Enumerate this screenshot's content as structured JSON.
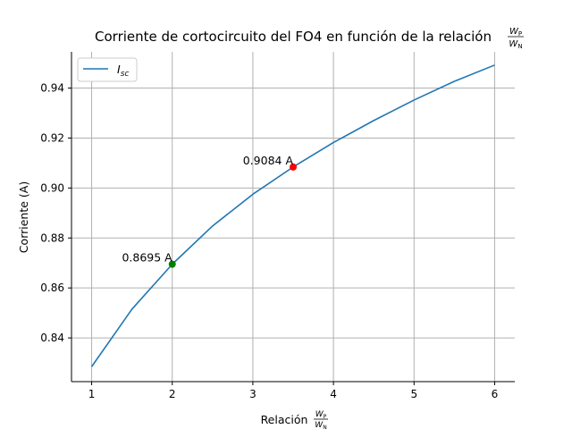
{
  "chart_data": {
    "type": "line",
    "title_text": "Corriente de cortocircuito del FO4 en función de la relación",
    "xlabel_text": "Relación",
    "ratio_num": "W",
    "ratio_num_sub": "P",
    "ratio_den": "W",
    "ratio_den_sub": "N",
    "ylabel": "Corriente (A)",
    "xlim": [
      0.75,
      6.25
    ],
    "ylim": [
      0.8225,
      0.9545
    ],
    "x_ticks": [
      1,
      2,
      3,
      4,
      5,
      6
    ],
    "x_tick_labels": [
      "1",
      "2",
      "3",
      "4",
      "5",
      "6"
    ],
    "y_ticks": [
      0.84,
      0.86,
      0.88,
      0.9,
      0.92,
      0.94
    ],
    "y_tick_labels": [
      "0.84",
      "0.86",
      "0.88",
      "0.90",
      "0.92",
      "0.94"
    ],
    "grid": true,
    "legend_position": "top-left",
    "series": [
      {
        "name": "I",
        "name_sub": "sc",
        "color": "#1f77b4",
        "x": [
          1.0,
          1.5,
          2.0,
          2.5,
          3.0,
          3.5,
          4.0,
          4.5,
          5.0,
          5.5,
          6.0
        ],
        "y": [
          0.8285,
          0.8515,
          0.8695,
          0.8848,
          0.8975,
          0.9084,
          0.9182,
          0.927,
          0.9352,
          0.9427,
          0.9492
        ]
      }
    ],
    "markers": [
      {
        "x": 2.0,
        "y": 0.8695,
        "color": "#008000",
        "label": "0.8695 A"
      },
      {
        "x": 3.5,
        "y": 0.9084,
        "color": "#ff0000",
        "label": "0.9084 A"
      }
    ]
  }
}
